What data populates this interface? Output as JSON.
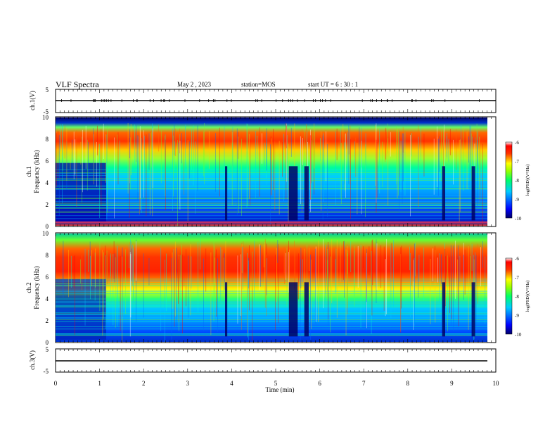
{
  "header": {
    "title": "VLF Spectra",
    "date": "May 2 , 2023",
    "station": "station=MOS",
    "start": "start UT =  6 : 30 : 1"
  },
  "chart_data": [
    {
      "type": "line",
      "panel": "ch1-waveform",
      "ylabel": "ch.1(V)",
      "yticks": [
        "5",
        "-5"
      ],
      "ylim": [
        -5,
        5
      ],
      "xlim": [
        0,
        10
      ],
      "description_level": -0.05
    },
    {
      "type": "heatmap",
      "panel": "ch1-spectrogram",
      "ylabel": "ch.1\nFrequency (kHz)",
      "ylabel_line1": "ch.1",
      "ylabel_line2": "Frequency (kHz)",
      "ylim": [
        0,
        10
      ],
      "yticks": [
        "0",
        "2",
        "4",
        "6",
        "8",
        "10"
      ],
      "xlim": [
        0,
        10
      ],
      "colorbar": {
        "label": "log(PSD)(V²/Hz)",
        "ticks": [
          "-6",
          "-7",
          "-8",
          "-9",
          "-10"
        ],
        "range": [
          -10,
          -6
        ]
      }
    },
    {
      "type": "heatmap",
      "panel": "ch2-spectrogram",
      "ylabel_line1": "ch.2",
      "ylabel_line2": "Frequency (kHz)",
      "ylim": [
        0,
        10
      ],
      "yticks": [
        "0",
        "2",
        "4",
        "6",
        "8",
        "10"
      ],
      "xlim": [
        0,
        10
      ],
      "colorbar": {
        "label": "log(PSD)(V²/Hz)",
        "ticks": [
          "-6",
          "-7",
          "-8",
          "-9",
          "-10"
        ],
        "range": [
          -10,
          -6
        ]
      }
    },
    {
      "type": "line",
      "panel": "ch3-waveform",
      "ylabel": "ch.3(V)",
      "yticks": [
        "5",
        "-5"
      ],
      "ylim": [
        -5,
        5
      ],
      "xlim": [
        0,
        10
      ],
      "xlabel": "Time (min)",
      "xticks": [
        "0",
        "1",
        "2",
        "3",
        "4",
        "5",
        "6",
        "7",
        "8",
        "9",
        "10"
      ]
    }
  ],
  "colors": {
    "colormap": [
      "#000066",
      "#0000ff",
      "#00ffff",
      "#00ff00",
      "#ffff00",
      "#ff0000",
      "#ffffff"
    ]
  }
}
